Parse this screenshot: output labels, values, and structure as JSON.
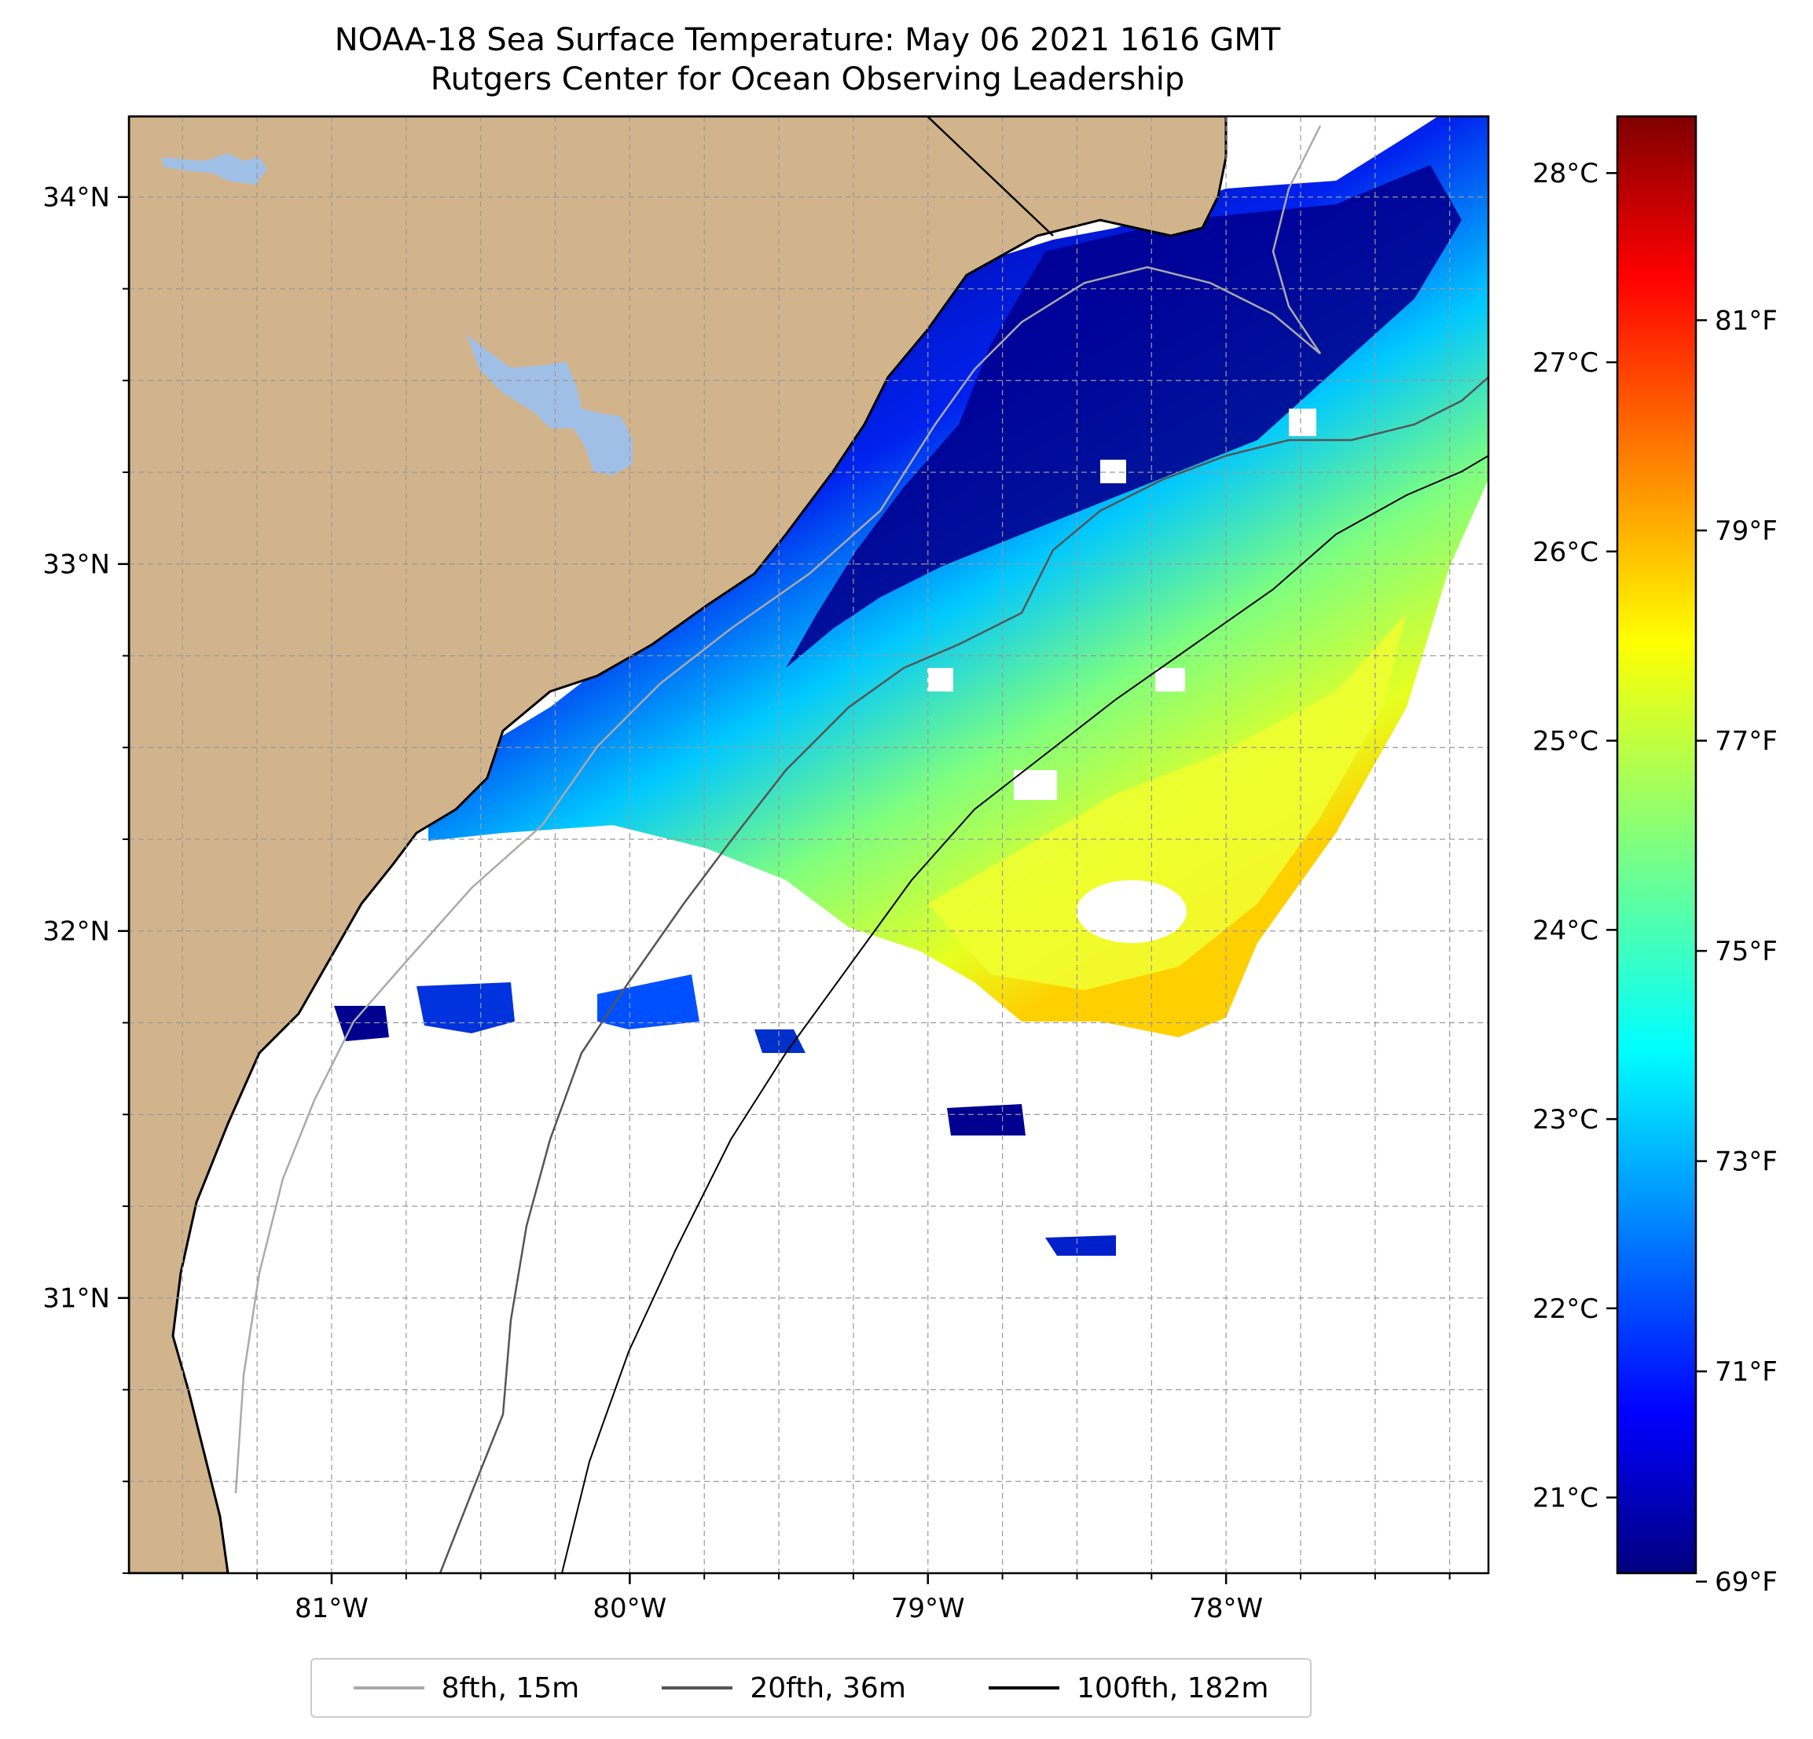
{
  "title": {
    "line1": "NOAA-18 Sea Surface Temperature: May 06 2021 1616 GMT",
    "line2": "Rutgers Center for Ocean Observing Leadership"
  },
  "map": {
    "lon_range": [
      -81.68,
      -77.12
    ],
    "lat_range": [
      30.25,
      34.22
    ],
    "lat_ticks": [
      {
        "value": 34,
        "label": "34°N"
      },
      {
        "value": 33,
        "label": "33°N"
      },
      {
        "value": 32,
        "label": "32°N"
      },
      {
        "value": 31,
        "label": "31°N"
      }
    ],
    "lon_ticks": [
      {
        "value": -81,
        "label": "81°W"
      },
      {
        "value": -80,
        "label": "80°W"
      },
      {
        "value": -79,
        "label": "79°W"
      },
      {
        "value": -78,
        "label": "78°W"
      }
    ],
    "grid": true,
    "colors": {
      "land": "#d2b48c",
      "lake": "#a0bfe6",
      "ocean_nodata": "#ffffff",
      "coastline": "#000000"
    }
  },
  "colorbar": {
    "colormap": "jet",
    "celsius_range": [
      20.6,
      28.3
    ],
    "celsius_ticks": [
      {
        "value": 21,
        "label": "21°C"
      },
      {
        "value": 22,
        "label": "22°C"
      },
      {
        "value": 23,
        "label": "23°C"
      },
      {
        "value": 24,
        "label": "24°C"
      },
      {
        "value": 25,
        "label": "25°C"
      },
      {
        "value": 26,
        "label": "26°C"
      },
      {
        "value": 27,
        "label": "27°C"
      },
      {
        "value": 28,
        "label": "28°C"
      }
    ],
    "fahrenheit_ticks": [
      {
        "value": 69,
        "label": "69°F"
      },
      {
        "value": 71,
        "label": "71°F"
      },
      {
        "value": 73,
        "label": "73°F"
      },
      {
        "value": 75,
        "label": "75°F"
      },
      {
        "value": 77,
        "label": "77°F"
      },
      {
        "value": 79,
        "label": "79°F"
      },
      {
        "value": 81,
        "label": "81°F"
      }
    ]
  },
  "legend": {
    "items": [
      {
        "label": "8fth, 15m",
        "color": "#aaaaaa"
      },
      {
        "label": "20fth, 36m",
        "color": "#555555"
      },
      {
        "label": "100fth, 182m",
        "color": "#000000"
      }
    ]
  }
}
